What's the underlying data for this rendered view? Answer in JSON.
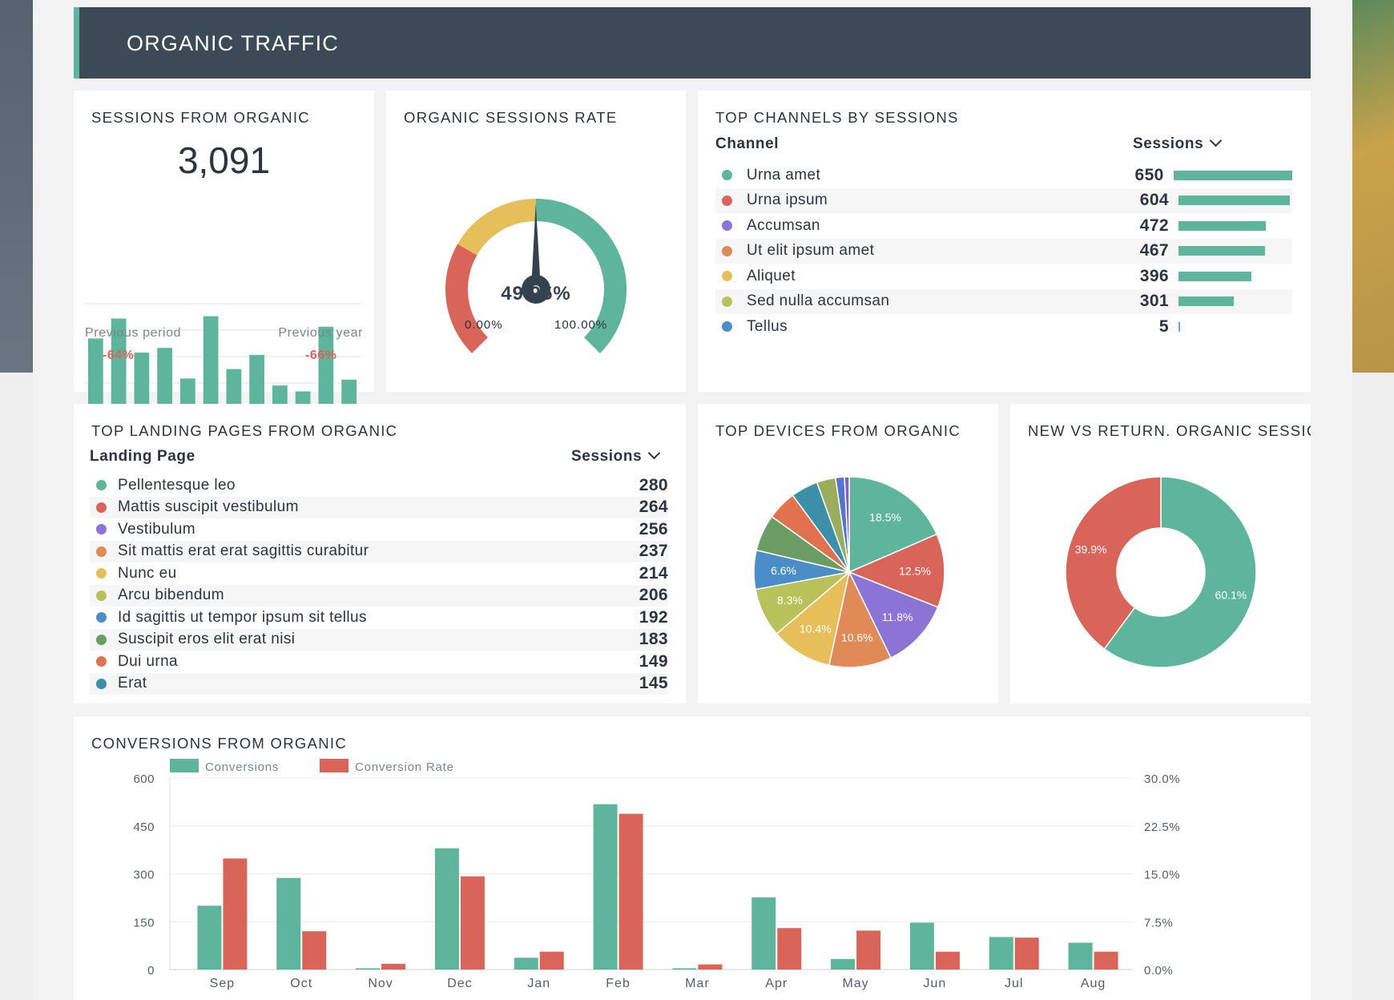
{
  "header": {
    "title": "ORGANIC TRAFFIC"
  },
  "sessions_card": {
    "title": "SESSIONS FROM ORGANIC",
    "value": "3,091",
    "bars": [
      59,
      76,
      47,
      51,
      25,
      78,
      33,
      45,
      19,
      14,
      69,
      24
    ],
    "prev_period_label": "Previous period",
    "prev_period_value": "-64%",
    "prev_year_label": "Previous year",
    "prev_year_value": "-66%"
  },
  "rate_card": {
    "title": "ORGANIC SESSIONS RATE",
    "value": "49.95%",
    "percent": 49.95,
    "min_label": "0.00%",
    "max_label": "100.00%",
    "colors": {
      "low": "#d8645a",
      "mid": "#e6bf5b",
      "high": "#5fb59b",
      "needle": "#34414e"
    }
  },
  "channels_card": {
    "title": "TOP CHANNELS BY SESSIONS",
    "col_channel": "Channel",
    "col_sessions": "Sessions",
    "max": 650,
    "rows": [
      {
        "label": "Urna amet",
        "value": "650",
        "n": 650,
        "color": "#5fb59b"
      },
      {
        "label": "Urna ipsum",
        "value": "604",
        "n": 604,
        "color": "#d8645a"
      },
      {
        "label": "Accumsan",
        "value": "472",
        "n": 472,
        "color": "#8c74d6"
      },
      {
        "label": "Ut elit ipsum amet",
        "value": "467",
        "n": 467,
        "color": "#e08a57"
      },
      {
        "label": "Aliquet",
        "value": "396",
        "n": 396,
        "color": "#e6bf5b"
      },
      {
        "label": "Sed nulla accumsan",
        "value": "301",
        "n": 301,
        "color": "#b9c25a"
      },
      {
        "label": "Tellus",
        "value": "5",
        "n": 5,
        "color": "#4b8dc7"
      }
    ]
  },
  "landing_card": {
    "title": "TOP LANDING PAGES FROM ORGANIC",
    "col_page": "Landing Page",
    "col_sessions": "Sessions",
    "rows": [
      {
        "label": "Pellentesque leo",
        "value": "280",
        "color": "#5fb59b"
      },
      {
        "label": "Mattis suscipit vestibulum",
        "value": "264",
        "color": "#d8645a"
      },
      {
        "label": "Vestibulum",
        "value": "256",
        "color": "#8c74d6"
      },
      {
        "label": "Sit mattis erat erat sagittis curabitur",
        "value": "237",
        "color": "#e08a57"
      },
      {
        "label": "Nunc eu",
        "value": "214",
        "color": "#e6bf5b"
      },
      {
        "label": "Arcu bibendum",
        "value": "206",
        "color": "#b9c25a"
      },
      {
        "label": "Id sagittis ut tempor ipsum sit tellus",
        "value": "192",
        "color": "#4b8dc7"
      },
      {
        "label": "Suscipit eros elit erat nisi",
        "value": "183",
        "color": "#6a9c63"
      },
      {
        "label": "Dui urna",
        "value": "149",
        "color": "#e0724f"
      },
      {
        "label": "Erat",
        "value": "145",
        "color": "#3d8fa8"
      }
    ]
  },
  "devices_card": {
    "title": "TOP DEVICES FROM ORGANIC",
    "slices": [
      {
        "value": 18.5,
        "label": "18.5%",
        "color": "#5fb59b"
      },
      {
        "value": 12.5,
        "label": "12.5%",
        "color": "#d8645a"
      },
      {
        "value": 11.8,
        "label": "11.8%",
        "color": "#8c74d6"
      },
      {
        "value": 10.6,
        "label": "10.6%",
        "color": "#e08a57"
      },
      {
        "value": 10.4,
        "label": "10.4%",
        "color": "#e6bf5b"
      },
      {
        "value": 8.3,
        "label": "8.3%",
        "color": "#b9c25a"
      },
      {
        "value": 6.6,
        "label": "6.6%",
        "color": "#4b8dc7"
      },
      {
        "value": 6.2,
        "label": "",
        "color": "#6a9c63"
      },
      {
        "value": 5.0,
        "label": "",
        "color": "#e0724f"
      },
      {
        "value": 4.6,
        "label": "",
        "color": "#3d8fa8"
      },
      {
        "value": 3.2,
        "label": "",
        "color": "#98ad5e"
      },
      {
        "value": 1.5,
        "label": "",
        "color": "#5574cf"
      },
      {
        "value": 0.8,
        "label": "",
        "color": "#8a5cc9"
      }
    ]
  },
  "newret_card": {
    "title": "NEW VS RETURN. ORGANIC SESSIC",
    "slices": [
      {
        "value": 60.1,
        "label": "60.1%",
        "color": "#5fb59b"
      },
      {
        "value": 39.9,
        "label": "39.9%",
        "color": "#d8645a"
      }
    ]
  },
  "conversions_card": {
    "title": "CONVERSIONS FROM ORGANIC",
    "chart_data": {
      "type": "bar",
      "categories": [
        "Sep",
        "Oct",
        "Nov",
        "Dec",
        "Jan",
        "Feb",
        "Mar",
        "Apr",
        "May",
        "Jun",
        "Jul",
        "Aug"
      ],
      "series": [
        {
          "name": "Conversions",
          "axis": "left",
          "color": "#5fb59b",
          "values": [
            200,
            287,
            4,
            380,
            37,
            518,
            4,
            226,
            33,
            147,
            102,
            84
          ]
        },
        {
          "name": "Conversion Rate",
          "axis": "right",
          "color": "#d8645a",
          "values": [
            17.4,
            6.0,
            0.9,
            14.6,
            2.8,
            24.4,
            0.8,
            6.5,
            6.1,
            2.8,
            5.0,
            2.8
          ]
        }
      ],
      "ylim": [
        0,
        600
      ],
      "yticks": [
        "600",
        "450",
        "300",
        "150",
        "0"
      ],
      "y2lim": [
        0,
        30
      ],
      "y2ticks": [
        "30.0%",
        "22.5%",
        "15.0%",
        "7.5%",
        "0.0%"
      ],
      "legend": "top-left",
      "grid": true
    }
  }
}
